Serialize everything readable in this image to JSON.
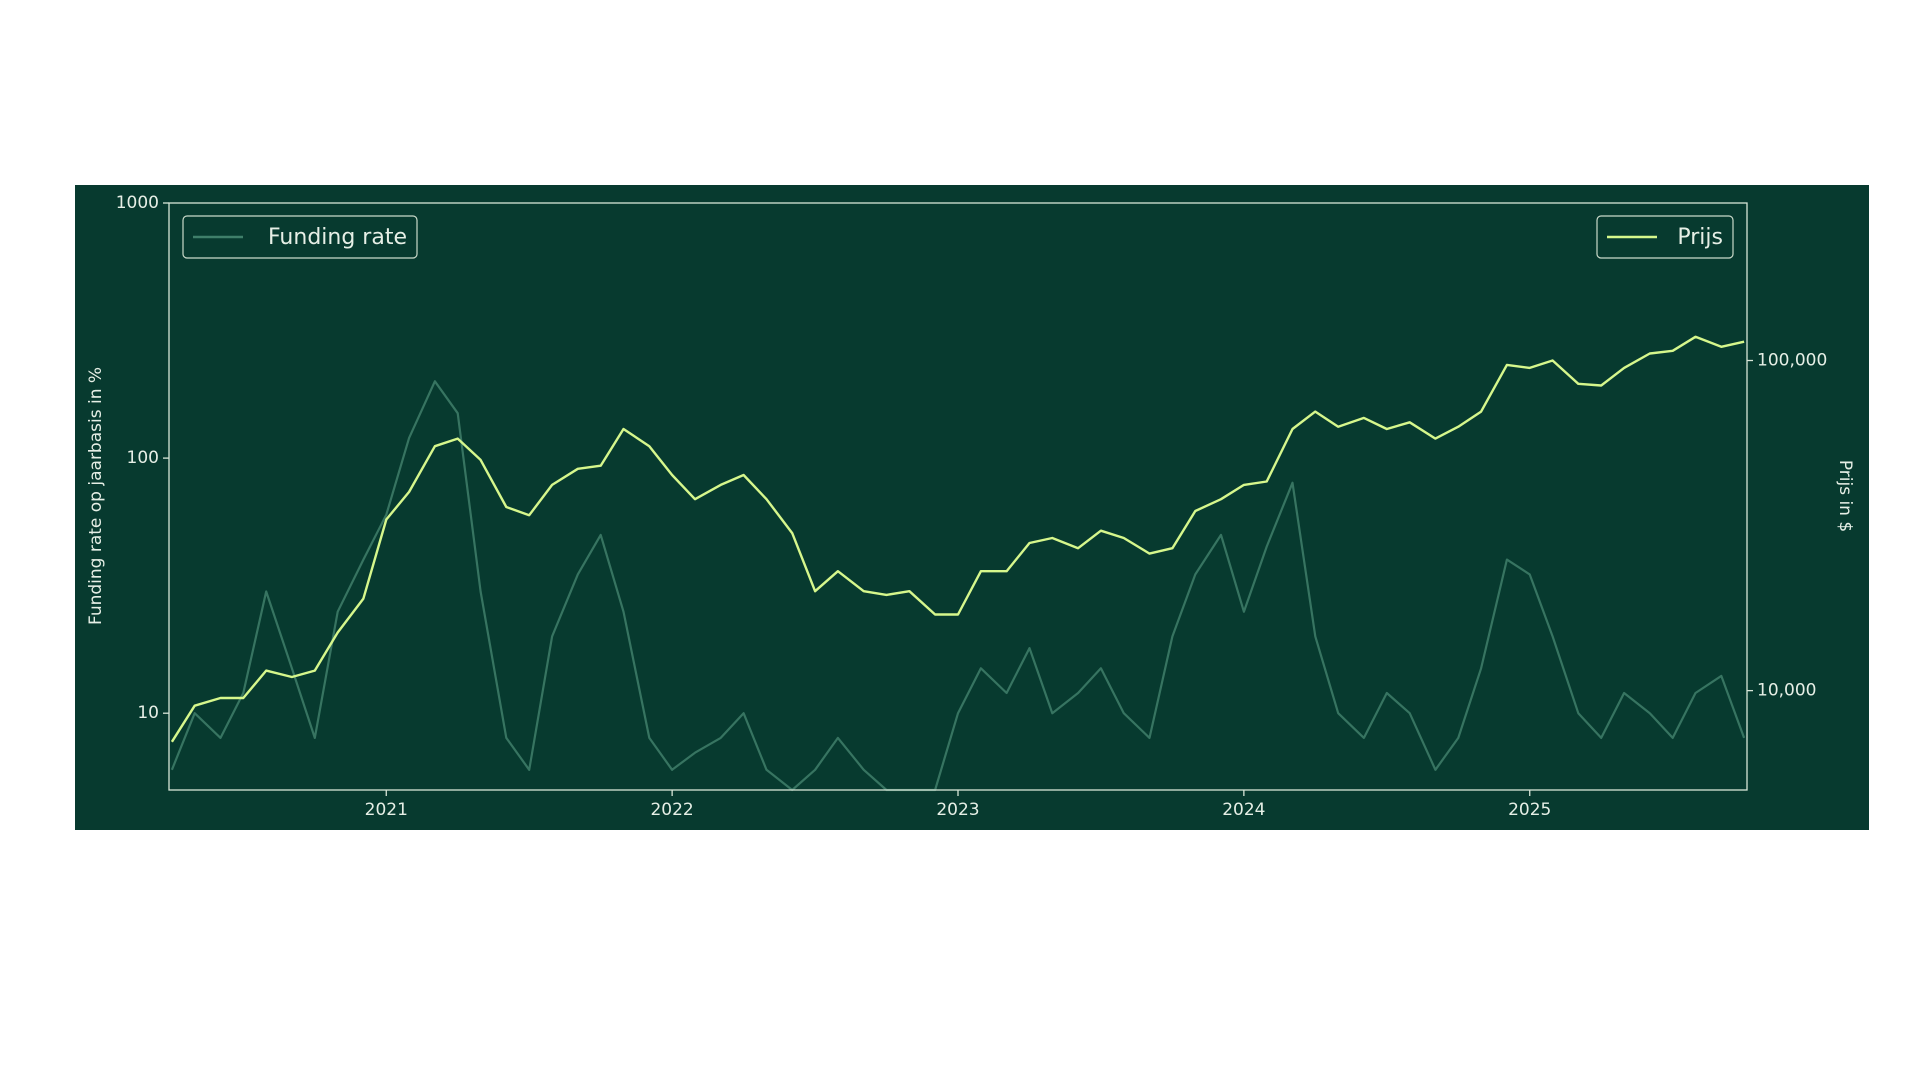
{
  "chart_data": {
    "type": "line",
    "x": [
      2020.25,
      2020.33,
      2020.42,
      2020.5,
      2020.58,
      2020.67,
      2020.75,
      2020.83,
      2020.92,
      2021,
      2021.08,
      2021.17,
      2021.25,
      2021.33,
      2021.42,
      2021.5,
      2021.58,
      2021.67,
      2021.75,
      2021.83,
      2021.92,
      2022,
      2022.08,
      2022.17,
      2022.25,
      2022.33,
      2022.42,
      2022.5,
      2022.58,
      2022.67,
      2022.75,
      2022.83,
      2022.92,
      2023,
      2023.08,
      2023.17,
      2023.25,
      2023.33,
      2023.42,
      2023.5,
      2023.58,
      2023.67,
      2023.75,
      2023.83,
      2023.92,
      2024,
      2024.08,
      2024.17,
      2024.25,
      2024.33,
      2024.42,
      2024.5,
      2024.58,
      2024.67,
      2024.75,
      2024.83,
      2024.92,
      2025,
      2025.08,
      2025.17,
      2025.25,
      2025.33,
      2025.42,
      2025.5,
      2025.58,
      2025.67,
      2025.75
    ],
    "series": [
      {
        "name": "Funding rate",
        "color": "#3f7f6a",
        "legend": "upper left",
        "values": [
          6,
          10,
          8,
          12,
          30,
          15,
          8,
          25,
          40,
          60,
          120,
          200,
          150,
          30,
          8,
          6,
          20,
          35,
          50,
          25,
          8,
          6,
          7,
          8,
          10,
          6,
          5,
          6,
          8,
          6,
          5,
          5,
          5,
          10,
          15,
          12,
          18,
          10,
          12,
          15,
          10,
          8,
          20,
          35,
          50,
          25,
          45,
          80,
          20,
          10,
          8,
          12,
          10,
          6,
          8,
          15,
          40,
          35,
          20,
          10,
          8,
          12,
          10,
          8,
          12,
          14,
          8
        ]
      },
      {
        "name": "Prijs",
        "color": "#d6f78c",
        "axis": "y2",
        "legend": "upper right",
        "values": [
          7000,
          9000,
          9500,
          9500,
          11500,
          11000,
          11500,
          15000,
          19000,
          33000,
          40000,
          55000,
          58000,
          50000,
          36000,
          34000,
          42000,
          47000,
          48000,
          62000,
          55000,
          45000,
          38000,
          42000,
          45000,
          38000,
          30000,
          20000,
          23000,
          20000,
          19500,
          20000,
          17000,
          17000,
          23000,
          23000,
          28000,
          29000,
          27000,
          30500,
          29000,
          26000,
          27000,
          35000,
          38000,
          42000,
          43000,
          62000,
          70000,
          63000,
          67000,
          62000,
          65000,
          58000,
          63000,
          70000,
          97000,
          95000,
          100000,
          85000,
          84000,
          95000,
          105000,
          107000,
          118000,
          110000,
          114000
        ]
      }
    ],
    "xlim": [
      2020.24,
      2025.76
    ],
    "xticks": [
      2021,
      2022,
      2023,
      2024,
      2025
    ],
    "ylim": [
      5,
      1000
    ],
    "yticks": [
      10,
      100,
      1000
    ],
    "ylog": true,
    "y2lim": [
      5000,
      300000
    ],
    "y2ticks": [
      {
        "value": 10000,
        "label": "10,000"
      },
      {
        "value": 100000,
        "label": "100,000"
      }
    ],
    "y2log": true,
    "ylabel": "Funding rate op jaarbasis in %",
    "y2label": "Prijs in $"
  }
}
